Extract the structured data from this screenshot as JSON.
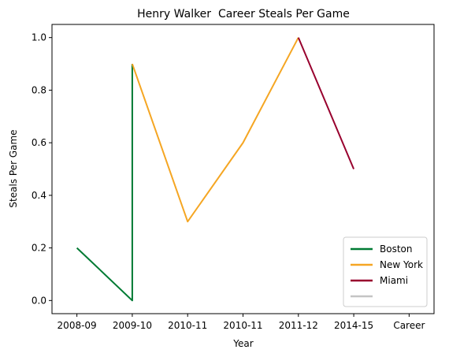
{
  "chart_data": {
    "type": "line",
    "title": "Henry Walker  Career Steals Per Game",
    "xlabel": "Year",
    "ylabel": "Steals Per Game",
    "x_tick_labels": [
      "2008-09",
      "2009-10",
      "2010-11",
      "2010-11",
      "2011-12",
      "2014-15",
      "Career"
    ],
    "y_ticks": [
      0.0,
      0.2,
      0.4,
      0.6,
      0.8,
      1.0
    ],
    "y_tick_labels": [
      "0.0",
      "0.2",
      "0.4",
      "0.6",
      "0.8",
      "1.0"
    ],
    "ylim": [
      -0.05,
      1.05
    ],
    "xlim": [
      -0.45,
      6.45
    ],
    "grid": false,
    "legend_position": "lower right",
    "series": [
      {
        "name": "Boston",
        "color": "#007A33",
        "points": [
          [
            0,
            0.2
          ],
          [
            1,
            0.0
          ],
          [
            1,
            0.9
          ]
        ]
      },
      {
        "name": "New York",
        "color": "#F5A623",
        "points": [
          [
            1,
            0.9
          ],
          [
            2,
            0.3
          ],
          [
            3,
            0.6
          ],
          [
            4,
            1.0
          ]
        ]
      },
      {
        "name": "Miami",
        "color": "#98002E",
        "points": [
          [
            4,
            1.0
          ],
          [
            5,
            0.5
          ]
        ]
      },
      {
        "name": "",
        "color": "#C4C4C4",
        "points": []
      }
    ]
  }
}
